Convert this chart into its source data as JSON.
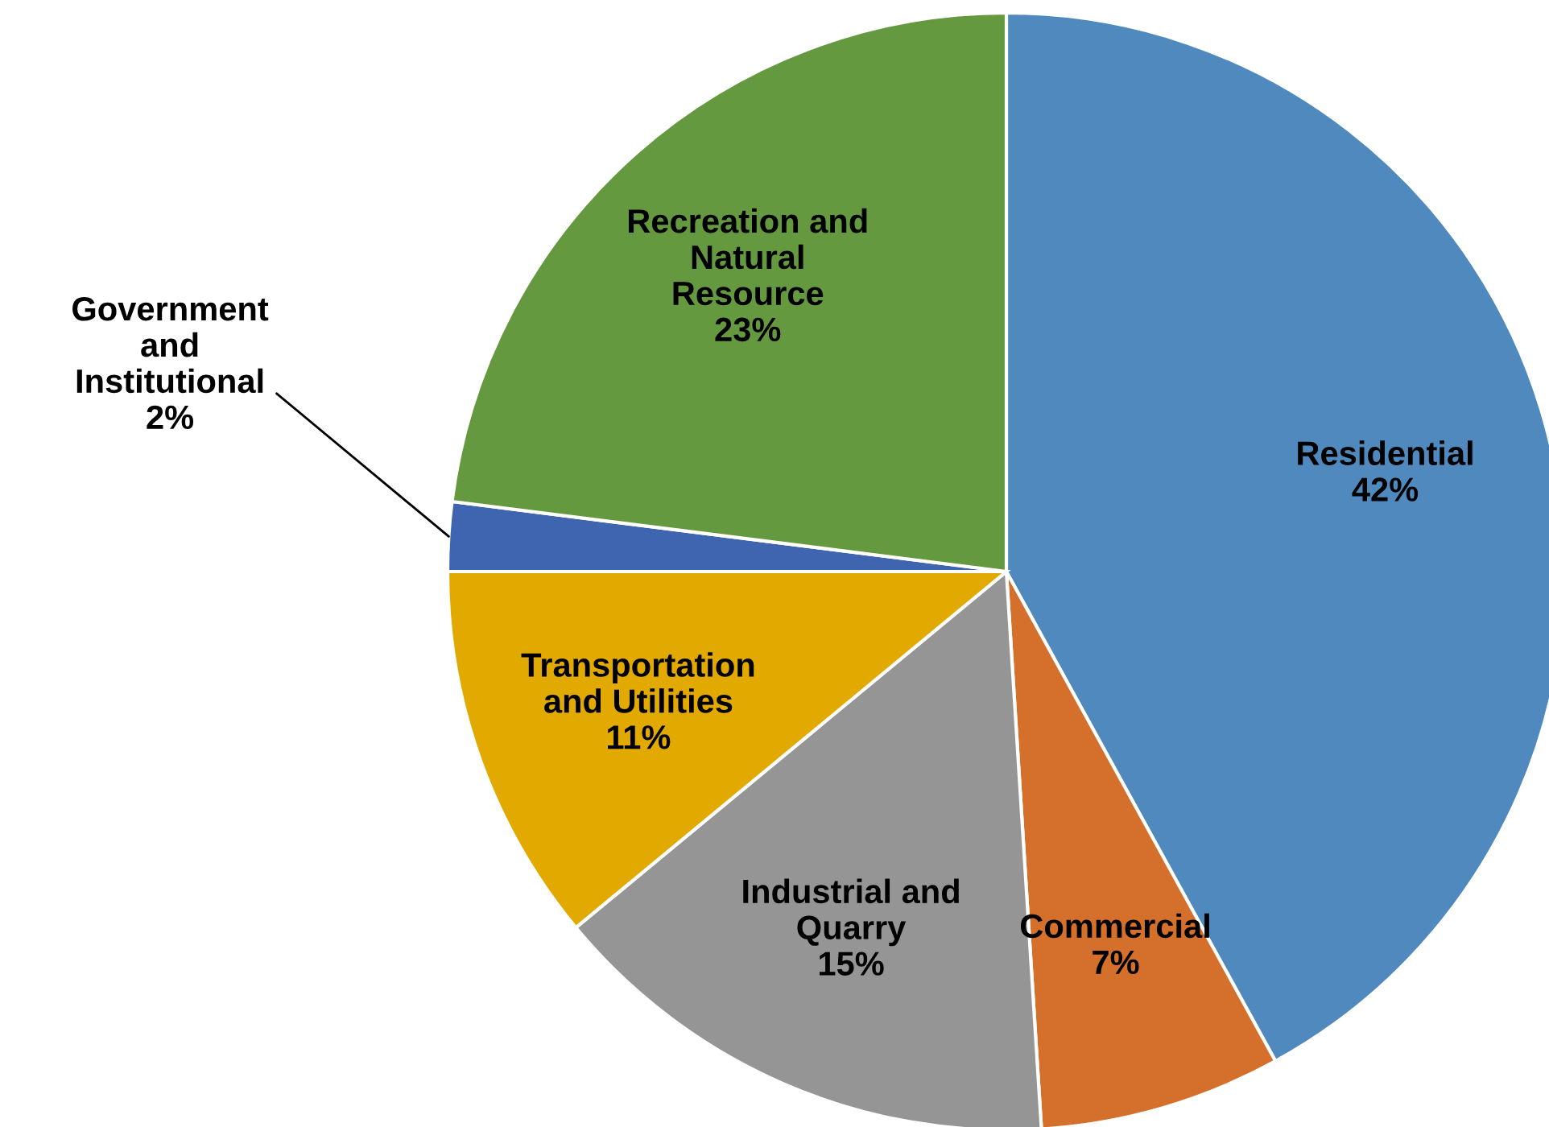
{
  "chart_data": {
    "type": "pie",
    "categories": [
      "Residential",
      "Commercial",
      "Industrial and\nQuarry",
      "Transportation\nand Utilities",
      "Government\nand\nInstitutional",
      "Recreation and\nNatural\nResource"
    ],
    "values": [
      42,
      7,
      15,
      11,
      2,
      23
    ],
    "value_labels": [
      "42%",
      "7%",
      "15%",
      "11%",
      "2%",
      "23%"
    ],
    "colors": [
      "#4f89bd",
      "#d4702b",
      "#959595",
      "#e2a900",
      "#3f64b0",
      "#65993f"
    ],
    "legend": false
  }
}
